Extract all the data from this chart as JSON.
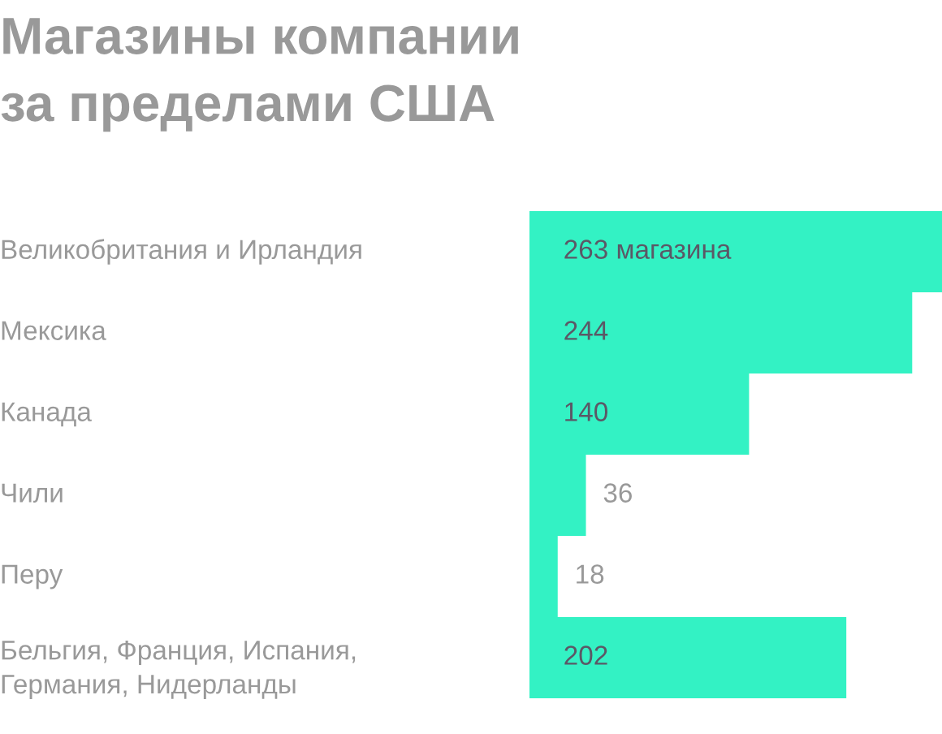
{
  "chart_data": {
    "type": "bar",
    "orientation": "horizontal",
    "title": "Магазины компании\nза пределами США",
    "categories": [
      "Великобритания и Ирландия",
      "Мексика",
      "Канада",
      "Чили",
      "Перу",
      "Бельгия, Франция, Испания,\nГермания, Нидерланды"
    ],
    "values": [
      263,
      244,
      140,
      36,
      18,
      202
    ],
    "value_labels": [
      "263 магазина",
      "244",
      "140",
      "36",
      "18",
      "202"
    ],
    "color": "#33f2c4"
  }
}
